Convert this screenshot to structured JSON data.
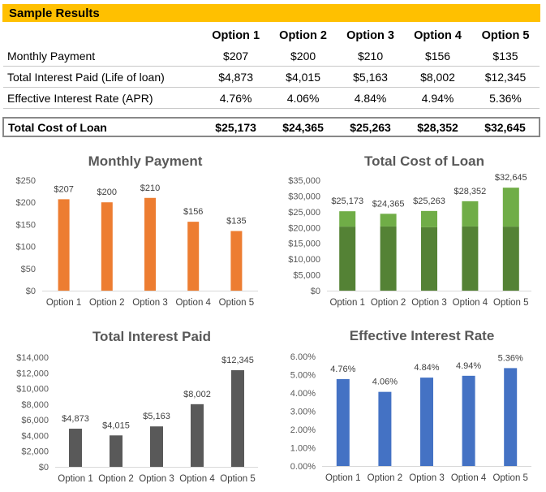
{
  "banner": {
    "title": "Sample Results"
  },
  "table": {
    "headers": [
      "Option 1",
      "Option 2",
      "Option 3",
      "Option 4",
      "Option 5"
    ],
    "rows": [
      {
        "label": "Monthly Payment",
        "values": [
          "$207",
          "$200",
          "$210",
          "$156",
          "$135"
        ]
      },
      {
        "label": "Total Interest Paid (Life of loan)",
        "values": [
          "$4,873",
          "$4,015",
          "$5,163",
          "$8,002",
          "$12,345"
        ]
      },
      {
        "label": "Effective Interest Rate (APR)",
        "values": [
          "4.76%",
          "4.06%",
          "4.84%",
          "4.94%",
          "5.36%"
        ]
      }
    ],
    "total": {
      "label": "Total Cost of Loan",
      "values": [
        "$25,173",
        "$24,365",
        "$25,263",
        "$28,352",
        "$32,645"
      ]
    }
  },
  "chart_data": [
    {
      "id": "monthly",
      "type": "bar",
      "title": "Monthly Payment",
      "categories": [
        "Option 1",
        "Option 2",
        "Option 3",
        "Option 4",
        "Option 5"
      ],
      "values": [
        207,
        200,
        210,
        156,
        135
      ],
      "data_labels": [
        "$207",
        "$200",
        "$210",
        "$156",
        "$135"
      ],
      "ylim": [
        0,
        250
      ],
      "yticks": [
        0,
        50,
        100,
        150,
        200,
        250
      ],
      "ytick_labels": [
        "$0",
        "$50",
        "$100",
        "$150",
        "$200",
        "$250"
      ],
      "color": "#ED7D31",
      "grid": false
    },
    {
      "id": "totalcost",
      "type": "bar",
      "stacked": true,
      "title": "Total Cost of Loan",
      "categories": [
        "Option 1",
        "Option 2",
        "Option 3",
        "Option 4",
        "Option 5"
      ],
      "series": [
        {
          "values": [
            20300,
            20350,
            20100,
            20350,
            20300
          ],
          "color": "#548235"
        },
        {
          "values": [
            4873,
            4015,
            5163,
            8002,
            12345
          ],
          "color": "#70AD47"
        }
      ],
      "data_labels": [
        "$25,173",
        "$24,365",
        "$25,263",
        "$28,352",
        "$32,645"
      ],
      "ylim": [
        0,
        35000
      ],
      "yticks": [
        0,
        5000,
        10000,
        15000,
        20000,
        25000,
        30000,
        35000
      ],
      "ytick_labels": [
        "$0",
        "$5,000",
        "$10,000",
        "$15,000",
        "$20,000",
        "$25,000",
        "$30,000",
        "$35,000"
      ],
      "grid": false
    },
    {
      "id": "interest",
      "type": "bar",
      "title": "Total Interest Paid",
      "categories": [
        "Option 1",
        "Option 2",
        "Option 3",
        "Option 4",
        "Option 5"
      ],
      "values": [
        4873,
        4015,
        5163,
        8002,
        12345
      ],
      "data_labels": [
        "$4,873",
        "$4,015",
        "$5,163",
        "$8,002",
        "$12,345"
      ],
      "ylim": [
        0,
        14000
      ],
      "yticks": [
        0,
        2000,
        4000,
        6000,
        8000,
        10000,
        12000,
        14000
      ],
      "ytick_labels": [
        "$0",
        "$2,000",
        "$4,000",
        "$6,000",
        "$8,000",
        "$10,000",
        "$12,000",
        "$14,000"
      ],
      "color": "#595959",
      "grid": false
    },
    {
      "id": "rate",
      "type": "bar",
      "title": "Effective Interest Rate",
      "categories": [
        "Option 1",
        "Option 2",
        "Option 3",
        "Option 4",
        "Option 5"
      ],
      "values": [
        4.76,
        4.06,
        4.84,
        4.94,
        5.36
      ],
      "data_labels": [
        "4.76%",
        "4.06%",
        "4.84%",
        "4.94%",
        "5.36%"
      ],
      "ylim": [
        0,
        6
      ],
      "yticks": [
        0,
        1,
        2,
        3,
        4,
        5,
        6
      ],
      "ytick_labels": [
        "0.00%",
        "1.00%",
        "2.00%",
        "3.00%",
        "4.00%",
        "5.00%",
        "6.00%"
      ],
      "color": "#4472C4",
      "grid": false
    }
  ]
}
